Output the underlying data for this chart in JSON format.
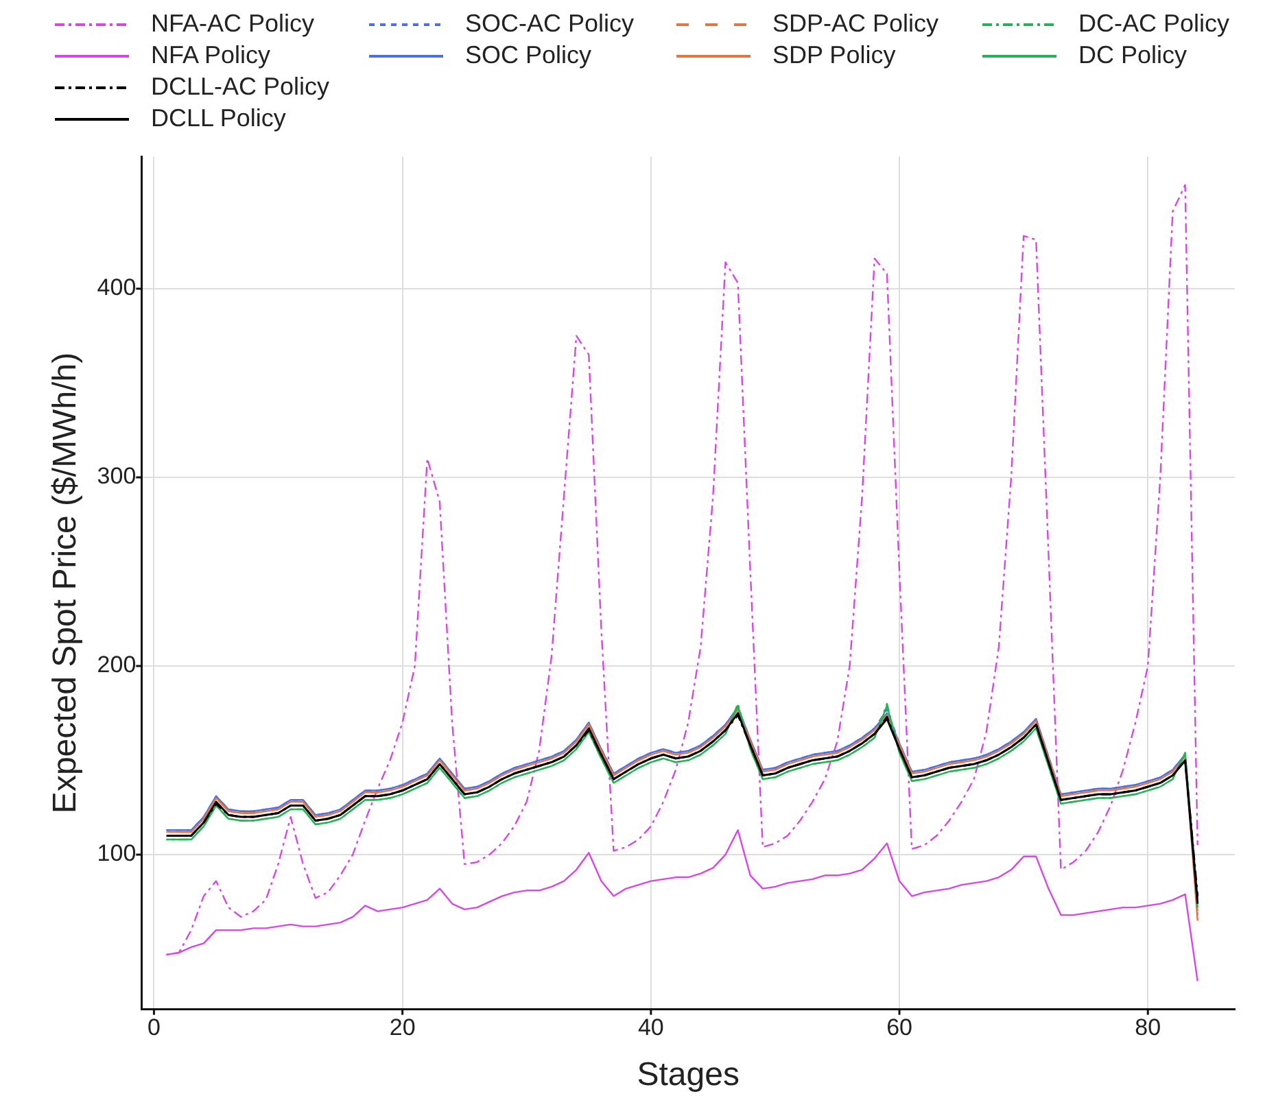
{
  "chart_data": {
    "type": "line",
    "xlabel": "Stages",
    "ylabel": "Expected Spot Price ($/MWh/h)",
    "xlim": [
      -1,
      87
    ],
    "ylim": [
      18,
      470
    ],
    "xticks": [
      0,
      20,
      40,
      60,
      80
    ],
    "yticks": [
      100,
      200,
      300,
      400
    ],
    "grid": true,
    "legend": "top",
    "marker": "none",
    "x": [
      1,
      2,
      3,
      4,
      5,
      6,
      7,
      8,
      9,
      10,
      11,
      12,
      13,
      14,
      15,
      16,
      17,
      18,
      19,
      20,
      21,
      22,
      23,
      24,
      25,
      26,
      27,
      28,
      29,
      30,
      31,
      32,
      33,
      34,
      35,
      36,
      37,
      38,
      39,
      40,
      41,
      42,
      43,
      44,
      45,
      46,
      47,
      48,
      49,
      50,
      51,
      52,
      53,
      54,
      55,
      56,
      57,
      58,
      59,
      60,
      61,
      62,
      63,
      64,
      65,
      66,
      67,
      68,
      69,
      70,
      71,
      72,
      73,
      74,
      75,
      76,
      77,
      78,
      79,
      80,
      81,
      82,
      83,
      84
    ],
    "series": [
      {
        "name": "NFA-AC Policy",
        "color": "#d946e8",
        "line_style": "dashdot",
        "values": [
          47,
          48,
          60,
          78,
          86,
          72,
          67,
          70,
          76,
          95,
          120,
          95,
          77,
          80,
          89,
          100,
          118,
          135,
          150,
          170,
          200,
          310,
          287,
          170,
          95,
          96,
          100,
          106,
          115,
          128,
          155,
          205,
          290,
          375,
          365,
          220,
          102,
          104,
          108,
          115,
          128,
          145,
          170,
          210,
          290,
          414,
          403,
          250,
          104,
          106,
          110,
          118,
          128,
          140,
          160,
          200,
          290,
          416,
          408,
          250,
          103,
          105,
          110,
          118,
          128,
          140,
          165,
          210,
          300,
          428,
          426,
          260,
          92,
          96,
          102,
          112,
          126,
          145,
          170,
          200,
          300,
          441,
          455,
          105
        ]
      },
      {
        "name": "NFA Policy",
        "color": "#d946e8",
        "line_style": "solid",
        "values": [
          47,
          48,
          51,
          53,
          60,
          60,
          60,
          61,
          61,
          62,
          63,
          62,
          62,
          63,
          64,
          67,
          73,
          70,
          71,
          72,
          74,
          76,
          82,
          74,
          71,
          72,
          75,
          78,
          80,
          81,
          81,
          83,
          86,
          92,
          101,
          86,
          78,
          82,
          84,
          86,
          87,
          88,
          88,
          90,
          93,
          100,
          113,
          89,
          82,
          83,
          85,
          86,
          87,
          89,
          89,
          90,
          92,
          98,
          106,
          86,
          78,
          80,
          81,
          82,
          84,
          85,
          86,
          88,
          92,
          99,
          99,
          82,
          68,
          68,
          69,
          70,
          71,
          72,
          72,
          73,
          74,
          76,
          79,
          33
        ]
      },
      {
        "name": "SOC-AC Policy",
        "color": "#4a72e8",
        "line_style": "dotted",
        "values": [
          113,
          113,
          113,
          120,
          131,
          124,
          123,
          123,
          124,
          125,
          129,
          129,
          121,
          122,
          124,
          129,
          134,
          134,
          135,
          137,
          140,
          143,
          151,
          143,
          135,
          136,
          139,
          143,
          146,
          148,
          150,
          152,
          155,
          161,
          170,
          156,
          143,
          147,
          151,
          154,
          156,
          154,
          155,
          158,
          163,
          169,
          178,
          161,
          145,
          146,
          149,
          151,
          153,
          154,
          155,
          158,
          162,
          167,
          177,
          159,
          144,
          145,
          147,
          149,
          150,
          151,
          153,
          156,
          160,
          165,
          172,
          152,
          132,
          133,
          134,
          135,
          135,
          136,
          137,
          139,
          141,
          145,
          153,
          68
        ]
      },
      {
        "name": "SOC Policy",
        "color": "#4a72e8",
        "line_style": "solid",
        "values": [
          113,
          113,
          113,
          120,
          131,
          124,
          123,
          123,
          124,
          125,
          129,
          129,
          121,
          122,
          124,
          129,
          134,
          134,
          135,
          137,
          140,
          143,
          151,
          143,
          135,
          136,
          139,
          143,
          146,
          148,
          150,
          152,
          155,
          161,
          170,
          156,
          143,
          147,
          151,
          154,
          156,
          154,
          155,
          158,
          163,
          169,
          178,
          161,
          145,
          146,
          149,
          151,
          153,
          154,
          155,
          158,
          162,
          167,
          175,
          159,
          144,
          145,
          147,
          149,
          150,
          151,
          153,
          156,
          160,
          165,
          172,
          152,
          132,
          133,
          134,
          135,
          135,
          136,
          137,
          139,
          141,
          145,
          153,
          77
        ]
      },
      {
        "name": "SDP-AC Policy",
        "color": "#e8743f",
        "line_style": "dashed",
        "values": [
          112,
          112,
          112,
          119,
          130,
          123,
          122,
          122,
          123,
          124,
          128,
          128,
          120,
          121,
          123,
          128,
          133,
          133,
          134,
          136,
          139,
          142,
          150,
          142,
          134,
          135,
          138,
          142,
          145,
          147,
          149,
          151,
          154,
          160,
          169,
          155,
          142,
          146,
          150,
          153,
          155,
          153,
          154,
          157,
          162,
          168,
          177,
          160,
          144,
          145,
          148,
          150,
          152,
          153,
          154,
          157,
          161,
          166,
          173,
          158,
          143,
          144,
          146,
          148,
          149,
          150,
          152,
          155,
          159,
          164,
          171,
          151,
          131,
          132,
          133,
          134,
          134,
          135,
          136,
          138,
          140,
          144,
          152,
          70
        ]
      },
      {
        "name": "SDP Policy",
        "color": "#e8743f",
        "line_style": "solid",
        "values": [
          112,
          112,
          112,
          119,
          130,
          123,
          122,
          122,
          123,
          124,
          128,
          128,
          120,
          121,
          123,
          128,
          133,
          133,
          134,
          136,
          139,
          142,
          150,
          142,
          134,
          135,
          138,
          142,
          145,
          147,
          149,
          151,
          154,
          160,
          169,
          155,
          142,
          146,
          150,
          153,
          155,
          153,
          154,
          157,
          162,
          168,
          177,
          160,
          144,
          145,
          148,
          150,
          152,
          153,
          154,
          157,
          161,
          166,
          174,
          158,
          143,
          144,
          146,
          148,
          149,
          150,
          152,
          155,
          159,
          164,
          171,
          151,
          131,
          132,
          133,
          134,
          134,
          135,
          136,
          138,
          140,
          144,
          152,
          65
        ]
      },
      {
        "name": "DC-AC Policy",
        "color": "#22b455",
        "line_style": "dashdot",
        "values": [
          108,
          108,
          108,
          115,
          126,
          119,
          118,
          118,
          119,
          120,
          124,
          124,
          116,
          117,
          119,
          124,
          129,
          129,
          130,
          132,
          135,
          138,
          146,
          138,
          130,
          131,
          134,
          138,
          141,
          143,
          145,
          147,
          150,
          156,
          165,
          151,
          138,
          142,
          146,
          149,
          151,
          149,
          150,
          153,
          158,
          164,
          180,
          156,
          140,
          141,
          144,
          146,
          148,
          149,
          150,
          153,
          157,
          162,
          180,
          154,
          139,
          140,
          142,
          144,
          145,
          146,
          148,
          151,
          155,
          160,
          167,
          147,
          127,
          128,
          129,
          130,
          130,
          131,
          132,
          134,
          136,
          140,
          154,
          72
        ]
      },
      {
        "name": "DC Policy",
        "color": "#22b455",
        "line_style": "solid",
        "values": [
          108,
          108,
          108,
          115,
          126,
          119,
          118,
          118,
          119,
          120,
          124,
          124,
          116,
          117,
          119,
          124,
          129,
          129,
          130,
          132,
          135,
          138,
          146,
          138,
          130,
          131,
          134,
          138,
          141,
          143,
          145,
          147,
          150,
          156,
          165,
          151,
          138,
          142,
          146,
          149,
          151,
          149,
          150,
          153,
          158,
          164,
          179,
          156,
          140,
          141,
          144,
          146,
          148,
          149,
          150,
          153,
          157,
          162,
          179,
          154,
          139,
          140,
          142,
          144,
          145,
          146,
          148,
          151,
          155,
          160,
          167,
          147,
          127,
          128,
          129,
          130,
          130,
          131,
          132,
          134,
          136,
          140,
          154,
          75
        ]
      },
      {
        "name": "DCLL-AC Policy",
        "color": "#000000",
        "line_style": "dashdot",
        "values": [
          110,
          110,
          110,
          117,
          127,
          121,
          120,
          120,
          121,
          122,
          126,
          126,
          118,
          119,
          121,
          126,
          131,
          131,
          132,
          134,
          137,
          140,
          148,
          140,
          132,
          133,
          136,
          140,
          143,
          145,
          147,
          149,
          152,
          158,
          166,
          153,
          140,
          144,
          148,
          151,
          153,
          151,
          152,
          155,
          160,
          166,
          174,
          158,
          142,
          143,
          146,
          148,
          150,
          151,
          152,
          155,
          159,
          164,
          173,
          156,
          141,
          142,
          144,
          146,
          147,
          148,
          150,
          153,
          157,
          162,
          169,
          149,
          129,
          130,
          131,
          132,
          132,
          133,
          134,
          136,
          138,
          142,
          150,
          78
        ]
      },
      {
        "name": "DCLL Policy",
        "color": "#000000",
        "line_style": "solid",
        "values": [
          110,
          110,
          110,
          117,
          128,
          121,
          120,
          120,
          121,
          122,
          126,
          126,
          118,
          119,
          121,
          126,
          131,
          131,
          132,
          134,
          137,
          140,
          148,
          140,
          132,
          133,
          136,
          140,
          143,
          145,
          147,
          149,
          152,
          158,
          167,
          153,
          140,
          144,
          148,
          151,
          153,
          151,
          152,
          155,
          160,
          166,
          175,
          158,
          142,
          143,
          146,
          148,
          150,
          151,
          152,
          155,
          159,
          164,
          172,
          156,
          141,
          142,
          144,
          146,
          147,
          148,
          150,
          153,
          157,
          162,
          169,
          149,
          129,
          130,
          131,
          132,
          132,
          133,
          134,
          136,
          138,
          142,
          150,
          74
        ]
      }
    ]
  }
}
